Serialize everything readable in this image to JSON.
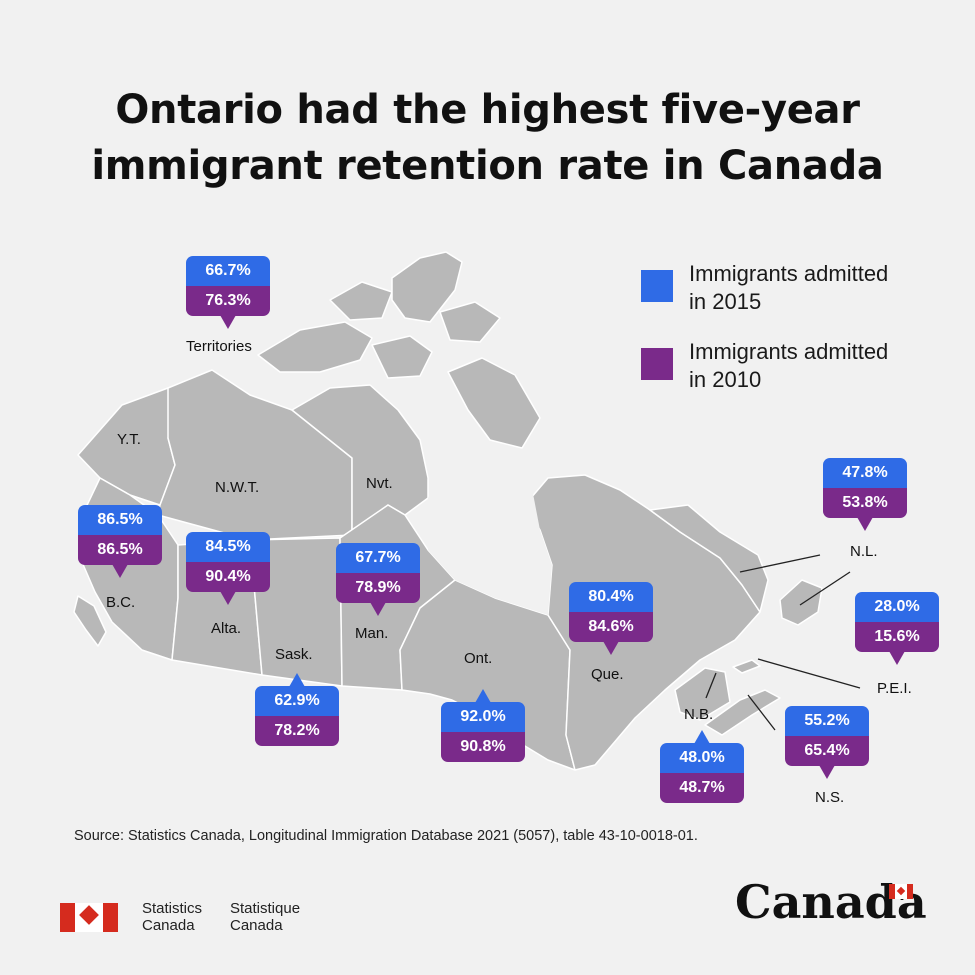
{
  "title": "Ontario had the highest five-year immigrant retention rate in Canada",
  "colors": {
    "admitted_2015": "#2f6be6",
    "admitted_2010": "#7a2a8a",
    "land": "#b8b8b8",
    "border": "#ffffff"
  },
  "legend": [
    {
      "label": "Immigrants admitted in 2015",
      "color": "#2f6be6"
    },
    {
      "label": "Immigrants admitted in 2010",
      "color": "#7a2a8a"
    }
  ],
  "region_labels": {
    "yt": "Y.T.",
    "nwt": "N.W.T.",
    "nvt": "Nvt.",
    "territories": "Territories",
    "bc": "B.C.",
    "alta": "Alta.",
    "sask": "Sask.",
    "man": "Man.",
    "ont": "Ont.",
    "que": "Que.",
    "nb": "N.B.",
    "ns": "N.S.",
    "pei": "P.E.I.",
    "nl": "N.L."
  },
  "chart_data": {
    "type": "map",
    "title": "Ontario had the highest five-year immigrant retention rate in Canada",
    "series": [
      {
        "name": "Immigrants admitted in 2015",
        "unit": "%"
      },
      {
        "name": "Immigrants admitted in 2010",
        "unit": "%"
      }
    ],
    "regions": [
      {
        "region": "Territories",
        "admitted_2015": "66.7%",
        "admitted_2010": "76.3%"
      },
      {
        "region": "B.C.",
        "admitted_2015": "86.5%",
        "admitted_2010": "86.5%"
      },
      {
        "region": "Alta.",
        "admitted_2015": "84.5%",
        "admitted_2010": "90.4%"
      },
      {
        "region": "Sask.",
        "admitted_2015": "62.9%",
        "admitted_2010": "78.2%"
      },
      {
        "region": "Man.",
        "admitted_2015": "67.7%",
        "admitted_2010": "78.9%"
      },
      {
        "region": "Ont.",
        "admitted_2015": "92.0%",
        "admitted_2010": "90.8%"
      },
      {
        "region": "Que.",
        "admitted_2015": "80.4%",
        "admitted_2010": "84.6%"
      },
      {
        "region": "N.B.",
        "admitted_2015": "48.0%",
        "admitted_2010": "48.7%"
      },
      {
        "region": "N.S.",
        "admitted_2015": "55.2%",
        "admitted_2010": "65.4%"
      },
      {
        "region": "P.E.I.",
        "admitted_2015": "28.0%",
        "admitted_2010": "15.6%"
      },
      {
        "region": "N.L.",
        "admitted_2015": "47.8%",
        "admitted_2010": "53.8%"
      }
    ]
  },
  "source": "Source: Statistics Canada, Longitudinal Immigration Database 2021 (5057), table 43-10-0018-01.",
  "footer": {
    "agency_en": "Statistics Canada",
    "agency_fr": "Statistique Canada",
    "wordmark": "Canada"
  }
}
